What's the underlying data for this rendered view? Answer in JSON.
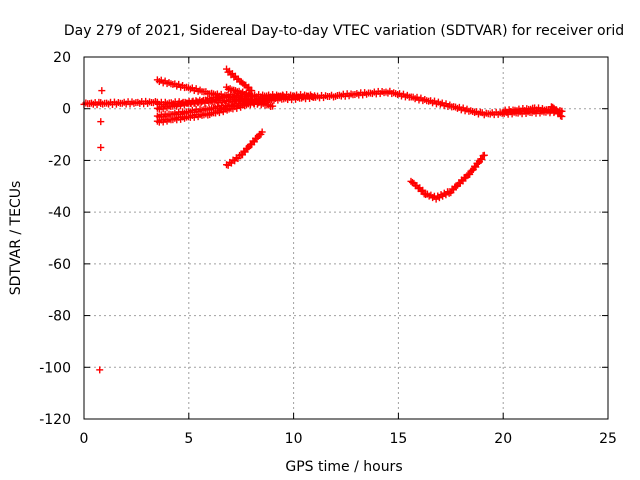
{
  "chart_data": {
    "type": "scatter",
    "title": "Day 279 of 2021, Sidereal Day-to-day VTEC variation (SDTVAR) for receiver orid",
    "xlabel": "GPS time / hours",
    "ylabel": "SDTVAR / TECUs",
    "xlim": [
      0,
      25
    ],
    "ylim": [
      -120,
      20
    ],
    "xticks": [
      "0",
      "5",
      "10",
      "15",
      "20",
      "25"
    ],
    "yticks": [
      "20",
      "0",
      "-20",
      "-40",
      "-60",
      "-80",
      "-100",
      "-120"
    ],
    "grid": true,
    "marker": "+",
    "color": "#ff0000",
    "series": [
      {
        "x": [
          0,
          0.8
        ],
        "values": [
          2,
          2
        ]
      },
      {
        "x": [
          0.8,
          3.5
        ],
        "values": [
          2,
          2.5
        ]
      },
      {
        "x": [
          3.5,
          7,
          10,
          12,
          14.5,
          17,
          19,
          22.8
        ],
        "values": [
          2,
          3,
          4,
          5,
          6.5,
          2,
          -2,
          -1
        ]
      },
      {
        "x": [
          3.5,
          6,
          9
        ],
        "values": [
          11,
          6,
          1
        ]
      },
      {
        "x": [
          3.5,
          6,
          9.5
        ],
        "values": [
          -5,
          -2,
          5
        ]
      },
      {
        "x": [
          3.5,
          7,
          11
        ],
        "values": [
          0,
          5,
          5
        ]
      },
      {
        "x": [
          3.5,
          6,
          8.5
        ],
        "values": [
          -3,
          0,
          3
        ]
      },
      {
        "x": [
          6.8,
          8
        ],
        "values": [
          15,
          7
        ]
      },
      {
        "x": [
          6.8,
          8
        ],
        "values": [
          8,
          5
        ]
      },
      {
        "x": [
          6.8,
          7.5,
          8.5
        ],
        "values": [
          -22,
          -18,
          -9
        ]
      },
      {
        "x": [
          15.6,
          16.3,
          16.8,
          17.5,
          18.4,
          19.1
        ],
        "values": [
          -28,
          -33,
          -34.5,
          -32,
          -25,
          -18
        ]
      },
      {
        "x": [
          20,
          21.5,
          22.8
        ],
        "values": [
          -1,
          0,
          -1
        ]
      },
      {
        "x": [
          22.3,
          22.8
        ],
        "values": [
          1,
          -3
        ]
      },
      {
        "x": [
          0.85
        ],
        "values": [
          7
        ]
      },
      {
        "x": [
          0.8
        ],
        "values": [
          -5
        ]
      },
      {
        "x": [
          0.8
        ],
        "values": [
          -15
        ]
      },
      {
        "x": [
          0.75
        ],
        "values": [
          -101
        ]
      }
    ]
  }
}
